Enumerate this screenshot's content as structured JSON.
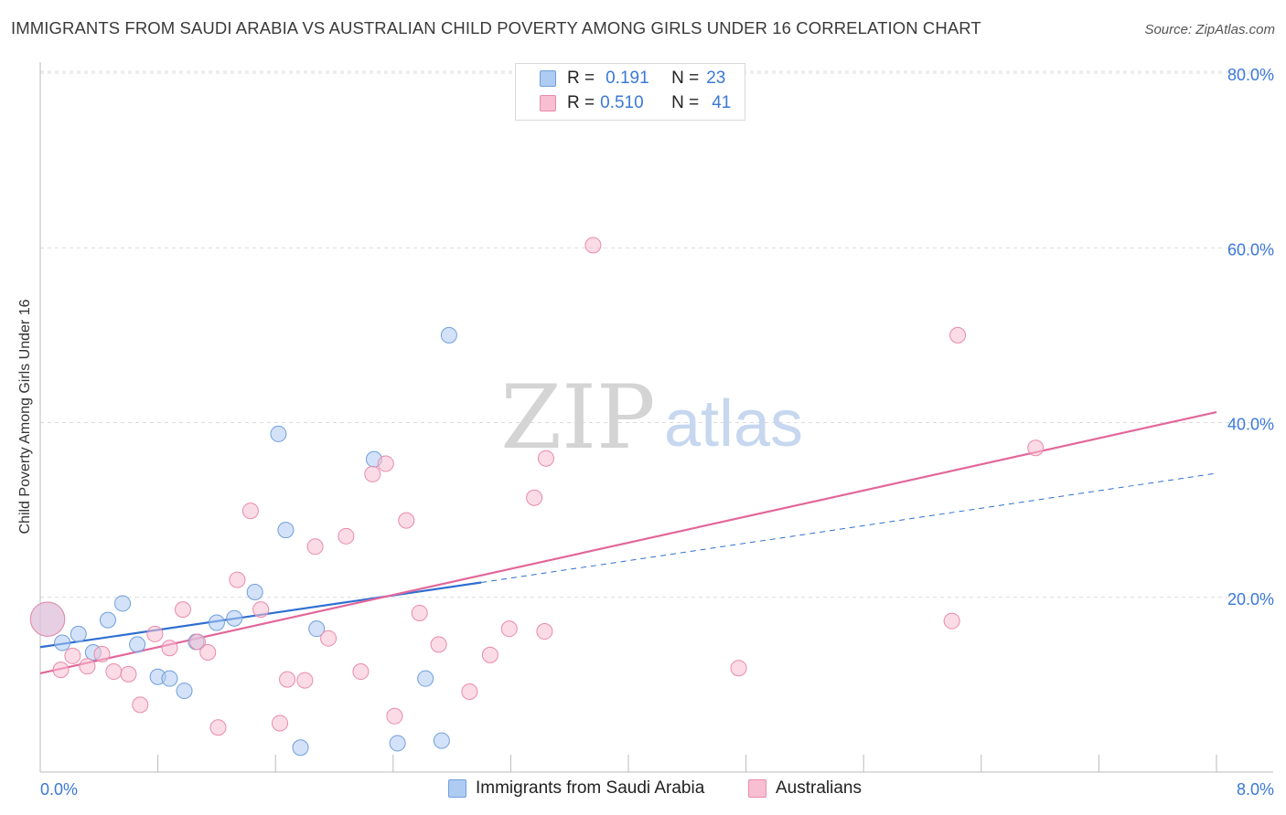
{
  "title": "IMMIGRANTS FROM SAUDI ARABIA VS AUSTRALIAN CHILD POVERTY AMONG GIRLS UNDER 16 CORRELATION CHART",
  "source": "Source: ZipAtlas.com",
  "watermark": {
    "zip": "ZIP",
    "atlas": "atlas"
  },
  "legend": {
    "rows": [
      {
        "r_label": "R =",
        "r_value": "0.191",
        "n_label": "N =",
        "n_value": "23"
      },
      {
        "r_label": "R =",
        "r_value": "0.510",
        "n_label": "N =",
        "n_value": "41"
      }
    ]
  },
  "colors": {
    "blue_fill": "#aecbf2",
    "blue_stroke": "#6f9fdc",
    "blue_line": "#2f6fd1",
    "pink_fill": "#f7bfd1",
    "pink_stroke": "#e98aaa",
    "pink_line": "#e2679a",
    "axis_text": "#3b78d8",
    "grid": "#dcdcdc"
  },
  "chart_data": {
    "type": "scatter",
    "xlabel": "",
    "ylabel": "Child Poverty Among Girls Under 16",
    "xlim": [
      0,
      8
    ],
    "ylim": [
      0,
      80
    ],
    "x_tick_labels": [
      "0.0%",
      "8.0%"
    ],
    "y_tick_labels": [
      "20.0%",
      "40.0%",
      "60.0%",
      "80.0%"
    ],
    "y_ticks": [
      20,
      40,
      60,
      80
    ],
    "x_ticks": [
      0,
      0.8,
      1.6,
      2.4,
      3.2,
      4.0,
      4.8,
      5.6,
      6.4,
      7.2,
      8.0
    ],
    "series": [
      {
        "name": "Immigrants from Saudi Arabia",
        "color": "blue",
        "points": [
          [
            0.05,
            17.5,
            2.2
          ],
          [
            0.15,
            14.8,
            1
          ],
          [
            0.26,
            15.8,
            1
          ],
          [
            0.36,
            13.7,
            1
          ],
          [
            0.46,
            17.4,
            1
          ],
          [
            0.56,
            19.3,
            1
          ],
          [
            0.66,
            14.6,
            1
          ],
          [
            0.8,
            10.9,
            1
          ],
          [
            0.88,
            10.7,
            1
          ],
          [
            0.98,
            9.3,
            1
          ],
          [
            1.06,
            14.9,
            1
          ],
          [
            1.2,
            17.1,
            1
          ],
          [
            1.32,
            17.6,
            1
          ],
          [
            1.46,
            20.6,
            1
          ],
          [
            1.62,
            38.7,
            1
          ],
          [
            1.67,
            27.7,
            1
          ],
          [
            1.77,
            2.8,
            1
          ],
          [
            1.88,
            16.4,
            1
          ],
          [
            2.27,
            35.8,
            1
          ],
          [
            2.43,
            3.3,
            1
          ],
          [
            2.62,
            10.7,
            1
          ],
          [
            2.73,
            3.6,
            1
          ],
          [
            2.78,
            50.0,
            1
          ]
        ],
        "trend": {
          "x0": 0,
          "y0": 14.3,
          "x1": 3.0,
          "y1": 21.7,
          "dashed_to_x": 8.0,
          "dashed_to_y": 34.2
        }
      },
      {
        "name": "Australians",
        "color": "pink",
        "points": [
          [
            0.05,
            17.5,
            2.2
          ],
          [
            0.14,
            11.7,
            1
          ],
          [
            0.22,
            13.3,
            1
          ],
          [
            0.32,
            12.1,
            1
          ],
          [
            0.42,
            13.5,
            1
          ],
          [
            0.5,
            11.5,
            1
          ],
          [
            0.6,
            11.2,
            1
          ],
          [
            0.68,
            7.7,
            1
          ],
          [
            0.78,
            15.8,
            1
          ],
          [
            0.88,
            14.2,
            1
          ],
          [
            0.97,
            18.6,
            1
          ],
          [
            1.07,
            14.9,
            1
          ],
          [
            1.14,
            13.7,
            1
          ],
          [
            1.21,
            5.1,
            1
          ],
          [
            1.34,
            22.0,
            1
          ],
          [
            1.43,
            29.9,
            1
          ],
          [
            1.5,
            18.6,
            1
          ],
          [
            1.63,
            5.6,
            1
          ],
          [
            1.68,
            10.6,
            1
          ],
          [
            1.8,
            10.5,
            1
          ],
          [
            1.87,
            25.8,
            1
          ],
          [
            1.96,
            15.3,
            1
          ],
          [
            2.08,
            27.0,
            1
          ],
          [
            2.18,
            11.5,
            1
          ],
          [
            2.26,
            34.1,
            1
          ],
          [
            2.35,
            35.3,
            1
          ],
          [
            2.41,
            6.4,
            1
          ],
          [
            2.49,
            28.8,
            1
          ],
          [
            2.58,
            18.2,
            1
          ],
          [
            2.71,
            14.6,
            1
          ],
          [
            2.92,
            9.2,
            1
          ],
          [
            3.06,
            13.4,
            1
          ],
          [
            3.19,
            16.4,
            1
          ],
          [
            3.36,
            31.4,
            1
          ],
          [
            3.43,
            16.1,
            1
          ],
          [
            3.44,
            35.9,
            1
          ],
          [
            3.76,
            60.3,
            1
          ],
          [
            4.75,
            11.9,
            1
          ],
          [
            6.2,
            17.3,
            1
          ],
          [
            6.24,
            50.0,
            1
          ],
          [
            6.77,
            37.1,
            1
          ]
        ],
        "trend": {
          "x0": 0,
          "y0": 11.3,
          "x1": 8.0,
          "y1": 41.2
        }
      }
    ]
  },
  "bottom_legend": {
    "blue_label": "Immigrants from Saudi Arabia",
    "pink_label": "Australians"
  }
}
